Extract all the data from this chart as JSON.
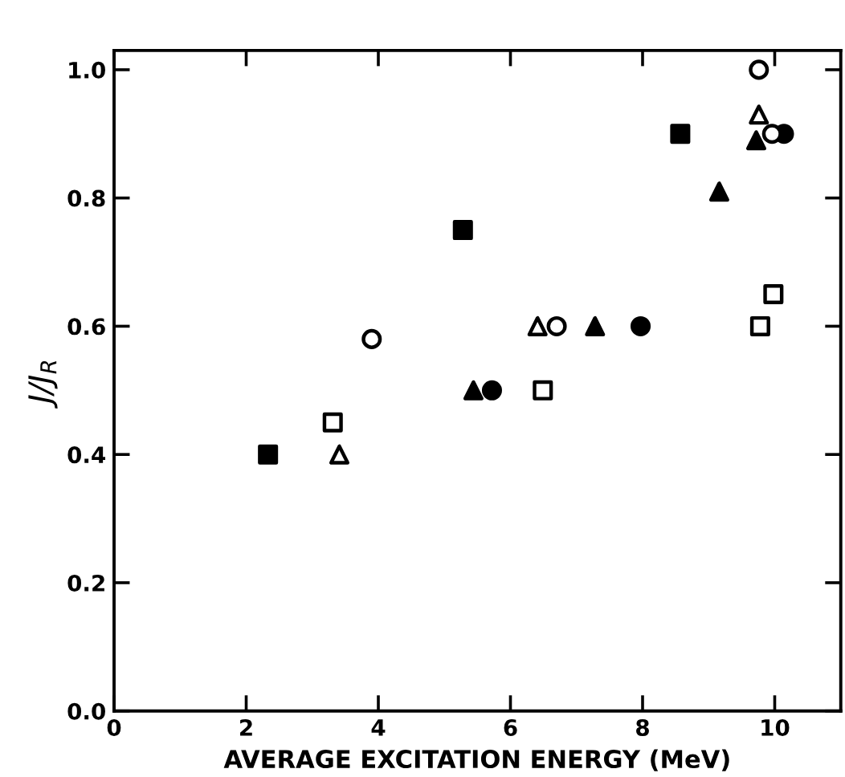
{
  "chart_data": {
    "type": "scatter",
    "xlabel": "AVERAGE EXCITATION ENERGY (MeV)",
    "ylabel": "J/J$_{R}$",
    "xlim": [
      0,
      11
    ],
    "ylim": [
      0,
      1.03
    ],
    "xticks": [
      0,
      2,
      4,
      6,
      8,
      10
    ],
    "yticks": [
      {
        "value": 0,
        "label": "0.0"
      },
      {
        "value": 0.2,
        "label": "0.2"
      },
      {
        "value": 0.4,
        "label": "0.4"
      },
      {
        "value": 0.6,
        "label": "0.6"
      },
      {
        "value": 0.8,
        "label": "0.8"
      },
      {
        "value": 1.0,
        "label": "1.0"
      }
    ],
    "grid": false,
    "series": [
      {
        "marker": "square",
        "color": "#000000",
        "x": [
          2.33,
          5.28,
          8.57
        ],
        "values": [
          0.4,
          0.75,
          0.9
        ]
      },
      {
        "marker": "square",
        "color": "#ffffff",
        "x": [
          3.31,
          6.49,
          9.78,
          9.98
        ],
        "values": [
          0.45,
          0.5,
          0.6,
          0.65
        ]
      },
      {
        "marker": "triangle",
        "color": "#000000",
        "x": [
          5.44,
          7.28,
          9.16,
          9.72
        ],
        "values": [
          0.5,
          0.6,
          0.81,
          0.89
        ]
      },
      {
        "marker": "triangle",
        "color": "#ffffff",
        "x": [
          3.41,
          6.41,
          9.76
        ],
        "values": [
          0.4,
          0.6,
          0.93
        ]
      },
      {
        "marker": "circle",
        "color": "#000000",
        "x": [
          5.72,
          7.97,
          10.14
        ],
        "values": [
          0.5,
          0.6,
          0.9
        ]
      },
      {
        "marker": "circle",
        "color": "#ffffff",
        "x": [
          3.9,
          6.7,
          9.76,
          9.96
        ],
        "values": [
          0.58,
          0.6,
          1.0,
          0.9
        ]
      }
    ]
  }
}
